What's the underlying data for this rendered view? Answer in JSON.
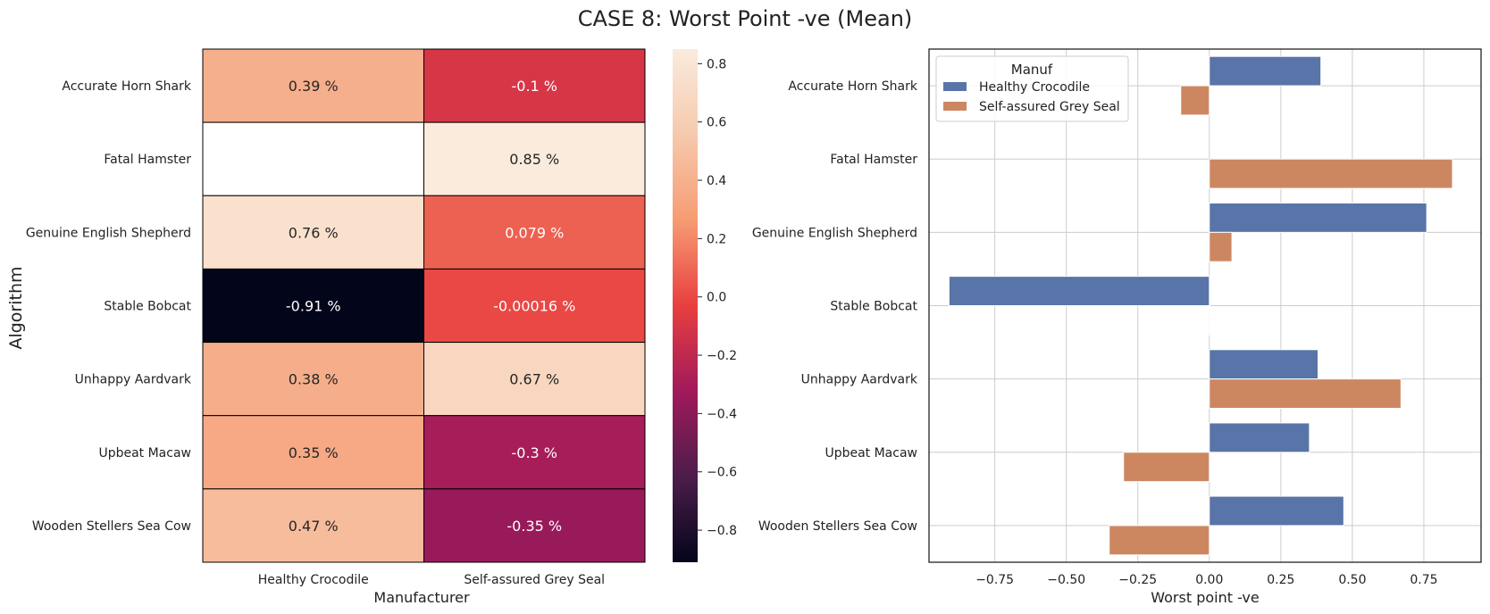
{
  "figure": {
    "title": "CASE 8: Worst Point -ve (Mean)"
  },
  "colorbar": {
    "ticks": [
      0.8,
      0.6,
      0.4,
      0.2,
      0.0,
      -0.2,
      -0.4,
      -0.6,
      -0.8
    ],
    "tick_labels": [
      "0.8",
      "0.6",
      "0.4",
      "0.2",
      "0.0",
      "−0.2",
      "−0.4",
      "−0.6",
      "−0.8"
    ],
    "min": -0.91,
    "max": 0.85
  },
  "chart_data": [
    {
      "type": "heatmap",
      "xlabel": "Manufacturer",
      "ylabel": "Algorithm",
      "columns": [
        "Healthy Crocodile",
        "Self-assured Grey Seal"
      ],
      "rows": [
        "Accurate Horn Shark",
        "Fatal Hamster",
        "Genuine English Shepherd",
        "Stable Bobcat",
        "Unhappy Aardvark",
        "Upbeat Macaw",
        "Wooden Stellers Sea Cow"
      ],
      "values": [
        [
          0.39,
          -0.1
        ],
        [
          null,
          0.85
        ],
        [
          0.76,
          0.079
        ],
        [
          -0.91,
          -0.00016
        ],
        [
          0.38,
          0.67
        ],
        [
          0.35,
          -0.3
        ],
        [
          0.47,
          -0.35
        ]
      ],
      "labels": [
        [
          "0.39 %",
          "-0.1 %"
        ],
        [
          "",
          "0.85 %"
        ],
        [
          "0.76 %",
          "0.079 %"
        ],
        [
          "-0.91 %",
          "-0.00016 %"
        ],
        [
          "0.38 %",
          "0.67 %"
        ],
        [
          "0.35 %",
          "-0.3 %"
        ],
        [
          "0.47 %",
          "-0.35 %"
        ]
      ],
      "colormap": "rocket"
    },
    {
      "type": "bar",
      "orientation": "horizontal",
      "xlabel": "Worst point -ve",
      "ylabel": "",
      "categories": [
        "Accurate Horn Shark",
        "Fatal Hamster",
        "Genuine English Shepherd",
        "Stable Bobcat",
        "Unhappy Aardvark",
        "Upbeat Macaw",
        "Wooden Stellers Sea Cow"
      ],
      "series": [
        {
          "name": "Healthy Crocodile",
          "color": "#5874a8",
          "values": [
            0.39,
            null,
            0.76,
            -0.91,
            0.38,
            0.35,
            0.47
          ]
        },
        {
          "name": "Self-assured Grey Seal",
          "color": "#cc8761",
          "values": [
            -0.1,
            0.85,
            0.079,
            -0.00016,
            0.67,
            -0.3,
            -0.35
          ]
        }
      ],
      "xlim": [
        -0.98,
        0.95
      ],
      "xticks": [
        -0.75,
        -0.5,
        -0.25,
        0.0,
        0.25,
        0.5,
        0.75
      ],
      "xtick_labels": [
        "−0.75",
        "−0.50",
        "−0.25",
        "0.00",
        "0.25",
        "0.50",
        "0.75"
      ],
      "grid": true,
      "legend": {
        "title": "Manuf",
        "placement": "top-left"
      }
    }
  ]
}
